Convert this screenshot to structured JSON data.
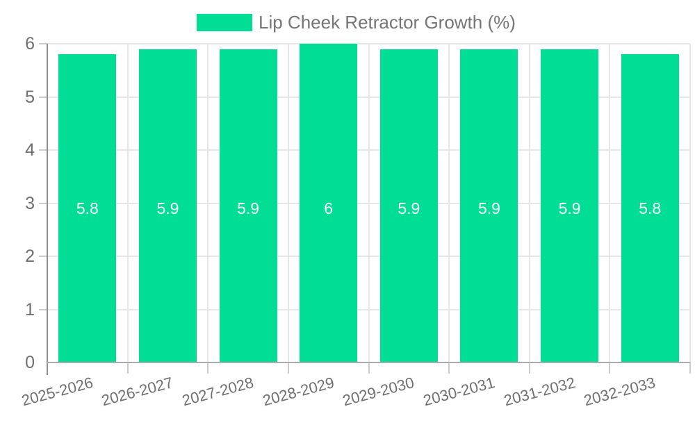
{
  "chart_data": {
    "type": "bar",
    "title": "Lip Cheek Retractor Growth (%)",
    "categories": [
      "2025-2026",
      "2026-2027",
      "2027-2028",
      "2028-2029",
      "2029-2030",
      "2030-2031",
      "2031-2032",
      "2032-2033"
    ],
    "values": [
      5.8,
      5.9,
      5.9,
      6,
      5.9,
      5.9,
      5.9,
      5.8
    ],
    "bar_labels": [
      "5.8",
      "5.9",
      "5.9",
      "6",
      "5.9",
      "5.9",
      "5.9",
      "5.8"
    ],
    "xlabel": "",
    "ylabel": "",
    "ylim": [
      0,
      6
    ],
    "yticks": [
      0,
      1,
      2,
      3,
      4,
      5,
      6
    ],
    "grid": true,
    "legend_position": "top-center",
    "bar_color": "#00DE96",
    "bar_label_color": "#ffffff",
    "axis_text_color": "#6f6f6f",
    "legend_text_color": "#757575"
  }
}
